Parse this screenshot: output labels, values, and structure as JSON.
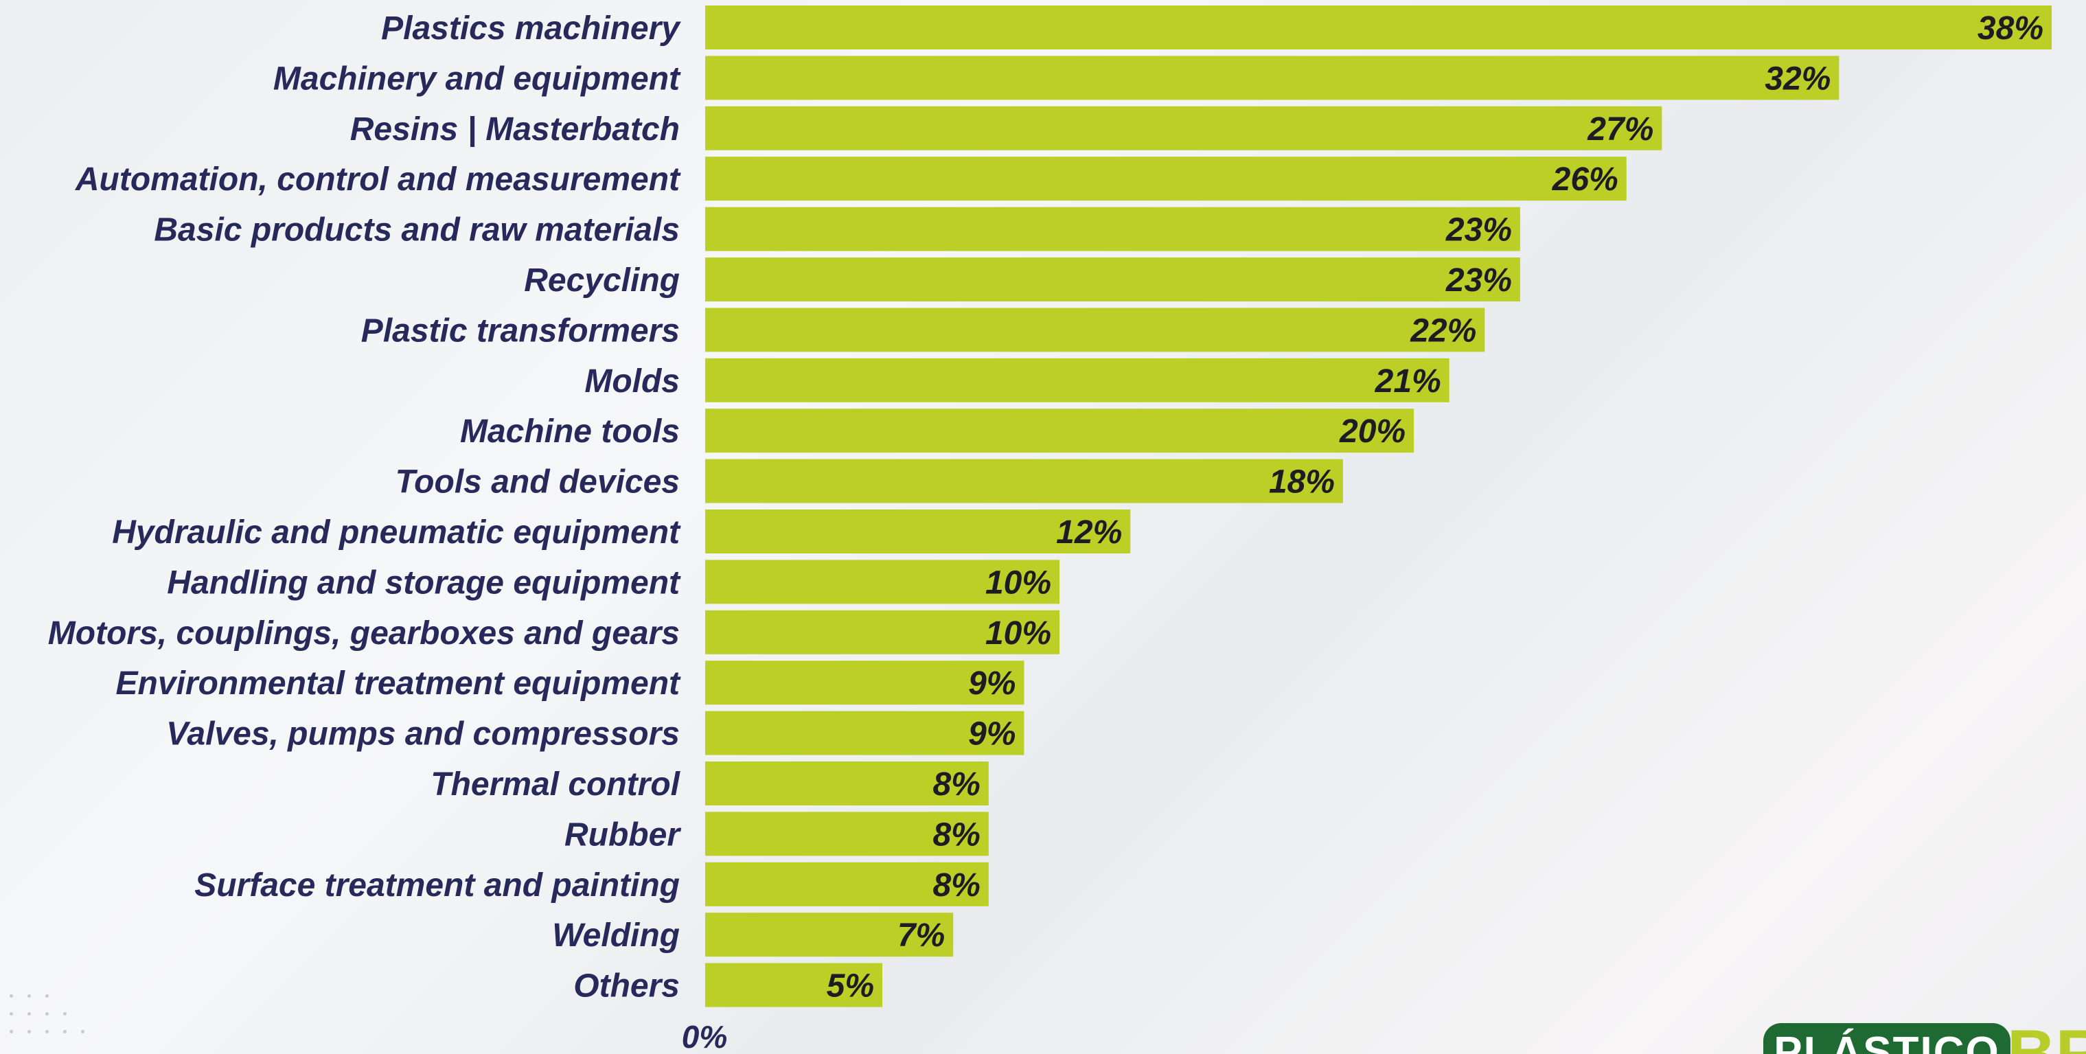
{
  "chart_data": {
    "type": "bar",
    "orientation": "horizontal",
    "categories": [
      "Plastics machinery",
      "Machinery and equipment",
      "Resins | Masterbatch",
      "Automation, control and measurement",
      "Basic products and raw materials",
      "Recycling",
      "Plastic transformers",
      "Molds",
      "Machine tools",
      "Tools and devices",
      "Hydraulic and pneumatic equipment",
      "Handling and storage equipment",
      "Motors, couplings, gearboxes and gears",
      "Environmental treatment equipment",
      "Valves, pumps and compressors",
      "Thermal control",
      "Rubber",
      "Surface treatment and painting",
      "Welding",
      "Others"
    ],
    "values": [
      38,
      32,
      27,
      26,
      23,
      23,
      22,
      21,
      20,
      18,
      12,
      10,
      10,
      9,
      9,
      8,
      8,
      8,
      7,
      5
    ],
    "value_labels": [
      "38%",
      "32%",
      "27%",
      "26%",
      "23%",
      "23%",
      "22%",
      "21%",
      "20%",
      "18%",
      "12%",
      "10%",
      "10%",
      "9%",
      "9%",
      "8%",
      "8%",
      "8%",
      "7%",
      "5%"
    ],
    "x_tick_label": "0%",
    "xlim": [
      0,
      38
    ],
    "bar_color": "#bccf27",
    "grid": false,
    "legend": "none"
  },
  "logo": {
    "text_left": "PLÁSTICO",
    "text_right": "BR"
  },
  "colors": {
    "label": "#27295a",
    "bar": "#bccf27",
    "logo_green": "#1f6a33",
    "logo_lime": "#b8cc2a"
  }
}
